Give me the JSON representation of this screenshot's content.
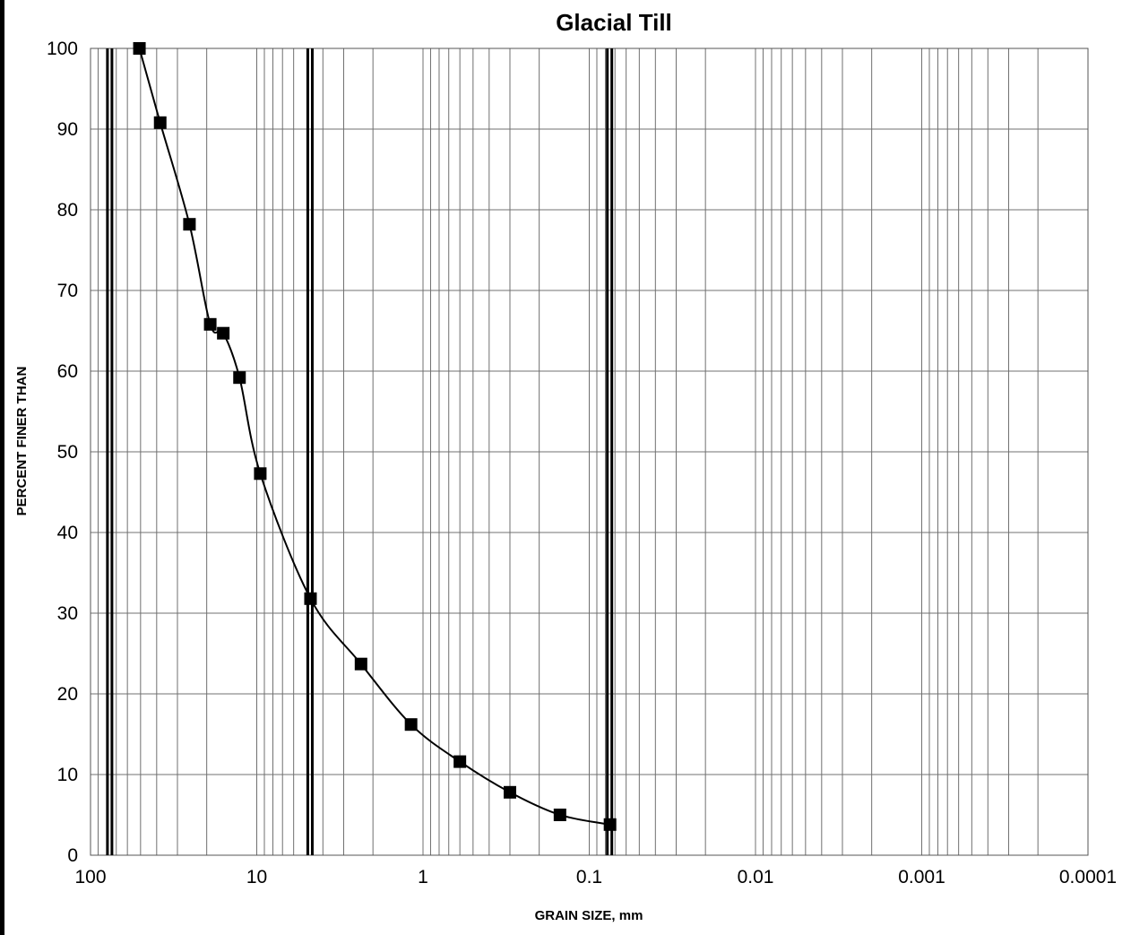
{
  "chart_data": {
    "type": "scatter",
    "title": "Glacial Till",
    "xlabel": "GRAIN SIZE, mm",
    "ylabel": "PERCENT FINER THAN",
    "x_scale": "log",
    "x_reversed": true,
    "xlim": [
      100,
      0.0001
    ],
    "ylim": [
      0,
      100
    ],
    "x_tick_labels": [
      "100",
      "10",
      "1",
      "0.1",
      "0.01",
      "0.001",
      "0.0001"
    ],
    "x_tick_values": [
      100,
      10,
      1,
      0.1,
      0.01,
      0.001,
      0.0001
    ],
    "y_tick_labels": [
      "0",
      "10",
      "20",
      "30",
      "40",
      "50",
      "60",
      "70",
      "80",
      "90",
      "100"
    ],
    "y_tick_values": [
      0,
      10,
      20,
      30,
      40,
      50,
      60,
      70,
      80,
      90,
      100
    ],
    "grid": true,
    "reference_lines_x": [
      76.2,
      4.75,
      0.075
    ],
    "series": [
      {
        "marker": "square",
        "line": "smooth",
        "color": "#000000",
        "x": [
          50.8,
          38.1,
          25.4,
          19.05,
          15.9,
          12.7,
          9.525,
          4.75,
          2.36,
          1.18,
          0.6,
          0.3,
          0.15,
          0.075
        ],
        "y": [
          100,
          90.8,
          78.2,
          65.8,
          64.7,
          59.2,
          47.3,
          31.8,
          23.7,
          16.2,
          11.6,
          7.8,
          5.0,
          3.8
        ]
      }
    ]
  }
}
